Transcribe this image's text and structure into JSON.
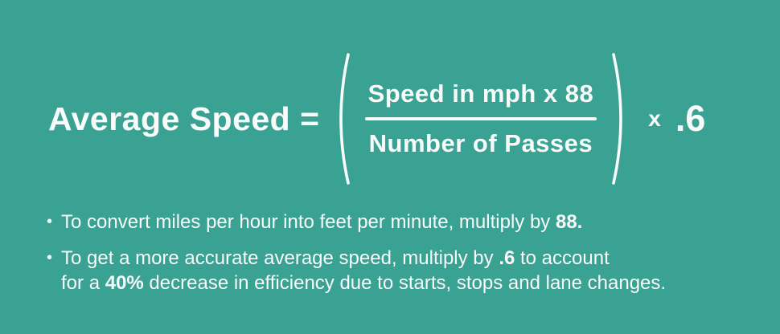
{
  "theme": {
    "background": "#39a293",
    "text_color": "#f8fbfa"
  },
  "formula": {
    "lhs": "Average Speed =",
    "numerator": "Speed in mph x 88",
    "denominator": "Number of Passes",
    "operator": "x",
    "factor": ".6"
  },
  "notes": [
    {
      "bullet": "•",
      "segments": [
        {
          "text": "To convert miles per hour into feet per minute, multiply by ",
          "bold": false
        },
        {
          "text": "88.",
          "bold": true
        }
      ]
    },
    {
      "bullet": "•",
      "segments": [
        {
          "text": "To get a more accurate average speed, multiply by ",
          "bold": false
        },
        {
          "text": ".6",
          "bold": true
        },
        {
          "text": " to account\nfor a ",
          "bold": false
        },
        {
          "text": "40%",
          "bold": true
        },
        {
          "text": " decrease in efficiency due to starts, stops and lane changes.",
          "bold": false
        }
      ]
    }
  ]
}
